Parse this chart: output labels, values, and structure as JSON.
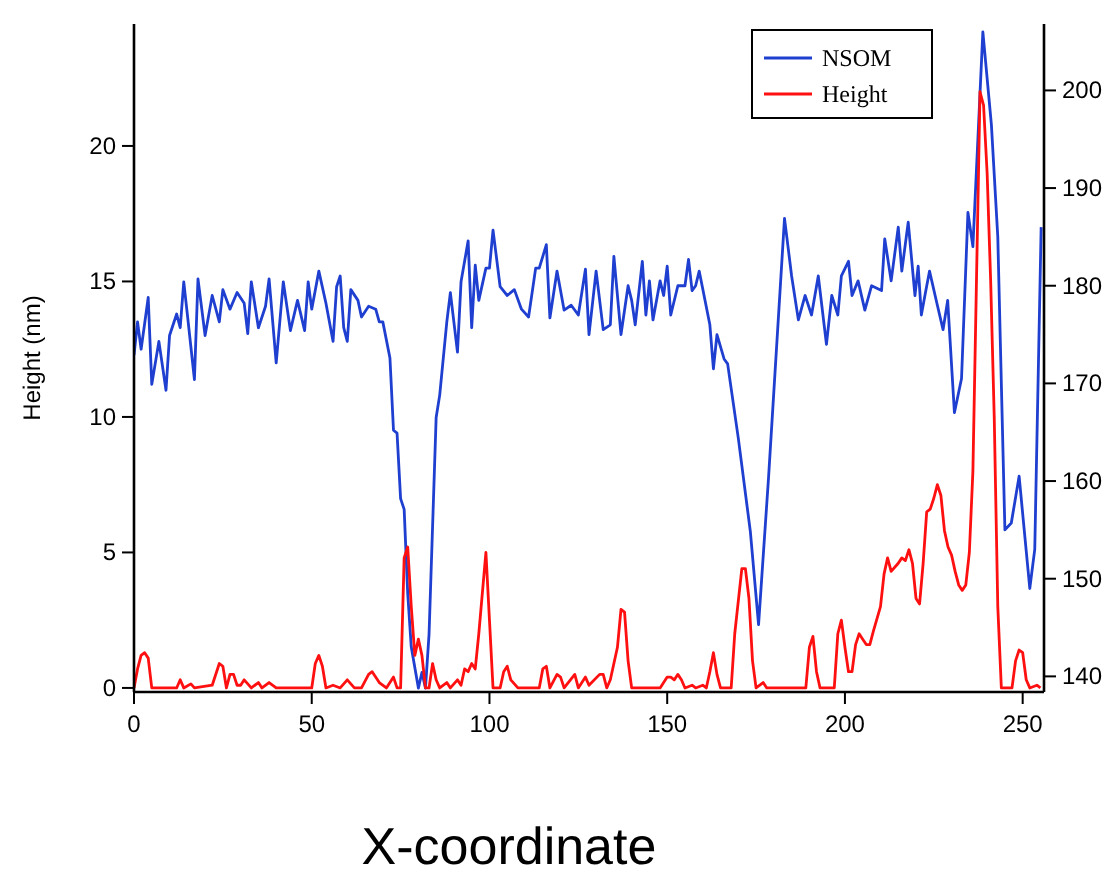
{
  "chart_data": {
    "type": "line",
    "xlabel": "X-coordinate",
    "ylabel": "Height (nm)",
    "xlim": [
      0,
      256
    ],
    "xticks": [
      0,
      50,
      100,
      150,
      200,
      250
    ],
    "ylim": [
      -0.15,
      24.5
    ],
    "yticks": [
      0,
      5,
      10,
      15,
      20
    ],
    "y2lim": [
      138.4,
      206.8
    ],
    "y2ticks": [
      140,
      150,
      160,
      170,
      180,
      190,
      200
    ],
    "legend": "top right",
    "grid": false,
    "marker": "none",
    "line_style": "solid",
    "series": [
      {
        "name": "NSOM",
        "color": "#1f3fd0",
        "axis": "y2",
        "x": [
          0,
          1,
          2,
          4,
          5,
          7,
          9,
          10,
          12,
          13,
          14,
          15,
          17,
          18,
          20,
          22,
          24,
          25,
          27,
          29,
          31,
          32,
          33,
          35,
          37,
          38,
          40,
          42,
          44,
          46,
          48,
          49,
          50,
          52,
          54,
          56,
          57,
          58,
          59,
          60,
          61,
          63,
          64,
          66,
          68,
          69,
          70,
          72,
          73,
          74,
          75,
          76,
          77,
          78,
          80,
          81,
          82,
          83,
          85,
          86,
          88,
          89,
          91,
          92,
          94,
          95,
          96,
          97,
          99,
          100,
          101,
          103,
          105,
          107,
          109,
          111,
          113,
          114,
          116,
          117,
          119,
          121,
          123,
          125,
          127,
          128,
          130,
          132,
          134,
          135,
          137,
          139,
          140,
          141,
          143,
          144,
          145,
          146,
          148,
          149,
          150,
          151,
          153,
          155,
          156,
          157,
          158,
          159,
          162,
          163,
          164,
          166,
          167,
          170,
          173.4,
          175.7,
          178.5,
          183,
          185,
          186.9,
          188.8,
          190.6,
          192.5,
          194.8,
          196.3,
          198,
          199,
          201,
          202,
          203.7,
          205.6,
          207.5,
          210.3,
          211.2,
          213,
          215,
          216,
          217.8,
          219.7,
          220.6,
          221.5,
          222.5,
          223.8,
          226,
          227.6,
          228.9,
          230.8,
          232.8,
          234.6,
          236,
          238.8,
          241.2,
          243,
          245,
          246.8,
          249,
          252,
          253.4,
          255.2
        ],
        "values": [
          172.9,
          176.3,
          173.5,
          178.8,
          169.9,
          174.3,
          169.3,
          174.9,
          177.1,
          175.7,
          180.4,
          177.1,
          170.4,
          180.7,
          174.9,
          179,
          176.3,
          179.6,
          177.6,
          179.3,
          178.2,
          175.1,
          180.4,
          175.7,
          177.9,
          180.7,
          172.1,
          180.4,
          175.4,
          178.5,
          175.4,
          180.4,
          177.6,
          181.5,
          178.2,
          174.3,
          179.9,
          181,
          175.7,
          174.3,
          179.6,
          178.5,
          176.8,
          177.9,
          177.6,
          176.3,
          176.3,
          172.6,
          165.2,
          164.9,
          158.2,
          157.1,
          148.5,
          143,
          138.8,
          140.4,
          138.8,
          144.3,
          166.5,
          168.8,
          176.3,
          179.3,
          173.2,
          180.4,
          184.6,
          175.7,
          182.1,
          178.5,
          181.8,
          181.8,
          185.7,
          179.9,
          179,
          179.6,
          177.6,
          176.8,
          181.8,
          181.8,
          184.2,
          176.7,
          181.5,
          177.5,
          178,
          177,
          181.7,
          175,
          181.5,
          175.5,
          176,
          183,
          175,
          180,
          178.5,
          176,
          182.5,
          177,
          180.5,
          176.5,
          180.5,
          179,
          182,
          177,
          180,
          180,
          182.7,
          179.5,
          180,
          181.5,
          176,
          171.5,
          175,
          172.5,
          172,
          164.4,
          154.8,
          145.3,
          160.3,
          186.9,
          181,
          176.5,
          179,
          177,
          181,
          174,
          179,
          177,
          181,
          182.5,
          179,
          180.5,
          177.5,
          180,
          179.5,
          184.8,
          180.5,
          186,
          181.5,
          186.5,
          179,
          182,
          177,
          179,
          181.5,
          178,
          175.5,
          178.5,
          167,
          170.5,
          187.5,
          184,
          206,
          196.5,
          185,
          155,
          155.7,
          160.5,
          149,
          153,
          186
        ]
      },
      {
        "name": "Height",
        "color": "#ff1010",
        "x": [
          0,
          1,
          2,
          3,
          4,
          5,
          12,
          13,
          14,
          16,
          17,
          22,
          24,
          25,
          26,
          27,
          28,
          29,
          30,
          31,
          33,
          35,
          36,
          38,
          40,
          50,
          51,
          52,
          53,
          54,
          56,
          58,
          60,
          62,
          64,
          66,
          67,
          69,
          71,
          73,
          74,
          75,
          76,
          77,
          78,
          79,
          80,
          81,
          82,
          83,
          84,
          85,
          86,
          88,
          89,
          91,
          92,
          93,
          94,
          95,
          96,
          97,
          99,
          100,
          101,
          103,
          104,
          105,
          106,
          108,
          110,
          114,
          115,
          116,
          117,
          119,
          120,
          121,
          124,
          125,
          127,
          128,
          131,
          132,
          133,
          134,
          136,
          137,
          138,
          139,
          140,
          148,
          150,
          151,
          152,
          153,
          154,
          155,
          157,
          158,
          160,
          161,
          162,
          163,
          164,
          165,
          168,
          169,
          170,
          171,
          172,
          173,
          174,
          175,
          177,
          178,
          189,
          190,
          191,
          192,
          193,
          197,
          198,
          199,
          200,
          201,
          202,
          203,
          204,
          205,
          206,
          207,
          208,
          210,
          211,
          212,
          213,
          215,
          216,
          217,
          218,
          219,
          220,
          221,
          222,
          223,
          224,
          225,
          226,
          227,
          228,
          229,
          230,
          231,
          232,
          233,
          234,
          235,
          236,
          237,
          238,
          239,
          240,
          241,
          242,
          243,
          244,
          247,
          248,
          249,
          250,
          251,
          252,
          254,
          255
        ],
        "values": [
          0,
          0.7,
          1.2,
          1.3,
          1.1,
          0,
          0,
          0.3,
          0,
          0.15,
          0,
          0.1,
          0.9,
          0.8,
          0,
          0.5,
          0.5,
          0.1,
          0.1,
          0.3,
          0,
          0.2,
          0,
          0.2,
          0,
          0,
          0.9,
          1.2,
          0.8,
          0,
          0.1,
          0,
          0.3,
          0,
          0,
          0.5,
          0.6,
          0.2,
          0,
          0.4,
          0,
          0,
          4.8,
          5.2,
          3,
          1.2,
          1.8,
          1.2,
          0,
          0,
          0.9,
          0.3,
          0,
          0.2,
          0,
          0.3,
          0.1,
          0.7,
          0.6,
          0.9,
          0.7,
          2,
          5,
          2.5,
          0,
          0,
          0.6,
          0.8,
          0.3,
          0,
          0,
          0,
          0.7,
          0.8,
          0,
          0.5,
          0.4,
          0,
          0.5,
          0,
          0.4,
          0.1,
          0.5,
          0.5,
          0,
          0.3,
          1.5,
          2.9,
          2.8,
          1,
          0,
          0,
          0.4,
          0.4,
          0.3,
          0.5,
          0.3,
          0,
          0.1,
          0,
          0.1,
          0,
          0.6,
          1.3,
          0.5,
          0,
          0,
          2,
          3.2,
          4.4,
          4.4,
          3.3,
          1,
          0,
          0.2,
          0,
          0,
          1.5,
          1.9,
          0.6,
          0,
          0,
          2,
          2.5,
          1.5,
          0.6,
          0.6,
          1.6,
          2,
          1.8,
          1.6,
          1.6,
          2.1,
          3,
          4.2,
          4.8,
          4.3,
          4.6,
          4.8,
          4.7,
          5.1,
          4.6,
          3.3,
          3.1,
          4.6,
          6.5,
          6.6,
          7,
          7.5,
          7.1,
          5.8,
          5.2,
          4.9,
          4.3,
          3.8,
          3.6,
          3.8,
          5,
          8,
          15,
          22,
          21.5,
          19,
          15,
          10,
          3,
          0,
          0,
          1,
          1.4,
          1.3,
          0.3,
          0,
          0.1,
          0
        ]
      }
    ]
  }
}
